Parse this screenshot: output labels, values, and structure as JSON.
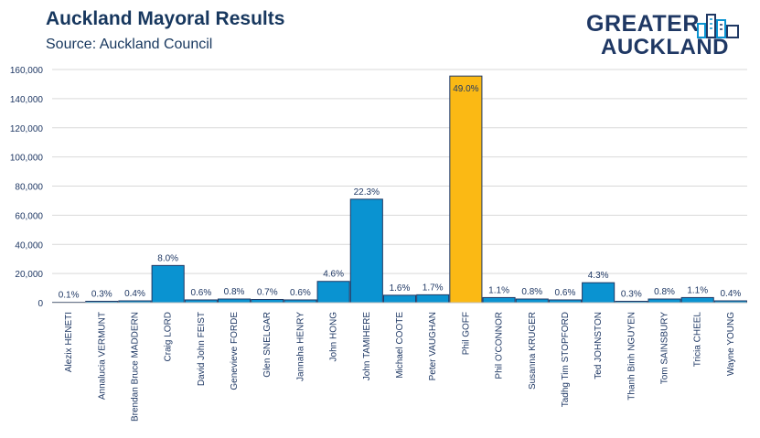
{
  "header": {
    "title": "Auckland Mayoral Results",
    "subtitle": "Source: Auckland Council"
  },
  "logo": {
    "line1": "GREATER",
    "line2": "AUCKLAND",
    "icon": "city-buildings-icon"
  },
  "colors": {
    "bar": "#0a93d1",
    "highlight": "#fbb914",
    "bar_stroke": "#1f3864",
    "grid": "#d9d9d9",
    "text": "#1f3864"
  },
  "chart_data": {
    "type": "bar",
    "title": "Auckland Mayoral Results",
    "subtitle": "Source: Auckland Council",
    "ylim": [
      0,
      160000
    ],
    "yticks": [
      0,
      20000,
      40000,
      60000,
      80000,
      100000,
      120000,
      140000,
      160000
    ],
    "ytick_labels": [
      "0",
      "20,000",
      "40,000",
      "60,000",
      "80,000",
      "100,000",
      "120,000",
      "140,000",
      "160,000"
    ],
    "grid": true,
    "highlight_category": "Phil GOFF",
    "categories": [
      "Alezix HENETI",
      "Annalucia VERMUNT",
      "Brendan Bruce MADDERN",
      "Craig LORD",
      "David John FEIST",
      "Genevieve FORDE",
      "Glen SNELGAR",
      "Jannaha HENRY",
      "John HONG",
      "John TAMIHERE",
      "Michael COOTE",
      "Peter VAUGHAN",
      "Phil GOFF",
      "Phil O'CONNOR",
      "Susanna KRUGER",
      "Tadhg Tim STOPFORD",
      "Ted JOHNSTON",
      "Thanh Binh NGUYEN",
      "Tom SAINSBURY",
      "Tricia CHEEL",
      "Wayne YOUNG"
    ],
    "values": [
      320,
      950,
      1250,
      25500,
      1900,
      2500,
      2200,
      1900,
      14600,
      71000,
      5100,
      5400,
      155500,
      3500,
      2500,
      1900,
      13700,
      950,
      2500,
      3500,
      1250
    ],
    "labels": [
      "0.1%",
      "0.3%",
      "0.4%",
      "8.0%",
      "0.6%",
      "0.8%",
      "0.7%",
      "0.6%",
      "4.6%",
      "22.3%",
      "1.6%",
      "1.7%",
      "49.0%",
      "1.1%",
      "0.8%",
      "0.6%",
      "4.3%",
      "0.3%",
      "0.8%",
      "1.1%",
      "0.4%"
    ]
  }
}
